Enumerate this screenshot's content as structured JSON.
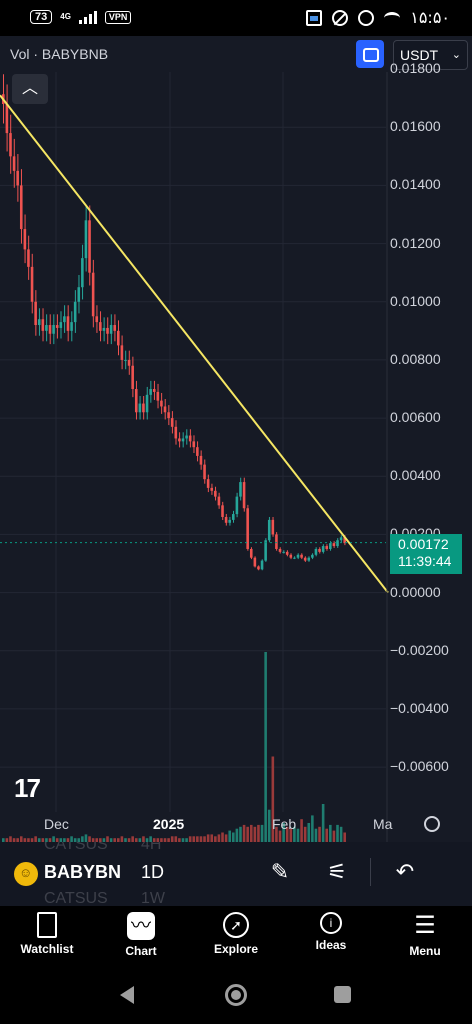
{
  "status_bar": {
    "battery": "73",
    "network": "4G",
    "vpn": "VPN",
    "time": "۱۵:۵۰"
  },
  "header": {
    "volume_label": "Vol · BABYBNB",
    "currency": "USDT",
    "sync_icon": "sync-icon",
    "collapse_icon": "chevron-up-icon"
  },
  "colors": {
    "background": "#161a25",
    "up": "#26a69a",
    "down": "#ef5350",
    "trendline": "#f5e663",
    "accent": "#2962ff",
    "price_tag": "#089981"
  },
  "chart_data": {
    "type": "candlestick",
    "title": "",
    "y_ticks": [
      "0.01600",
      "0.01400",
      "0.01200",
      "0.01000",
      "0.00800",
      "0.00600",
      "0.00400",
      "0.00200",
      "0.00000",
      "−0.00200",
      "−0.00400",
      "−0.00600"
    ],
    "y_top_partial": "0.01800",
    "x_ticks": [
      "Dec",
      "2025",
      "Feb",
      "Ma"
    ],
    "ylim": [
      -0.0072,
      0.0179
    ],
    "last_price": "0.00172",
    "countdown": "11:39:44",
    "dates_start": "2024-11-08",
    "close_values": [
      0.0168,
      0.0158,
      0.015,
      0.0145,
      0.014,
      0.0125,
      0.0118,
      0.0112,
      0.01,
      0.0092,
      0.0094,
      0.009,
      0.0092,
      0.0089,
      0.0092,
      0.0091,
      0.0093,
      0.0095,
      0.009,
      0.0093,
      0.01,
      0.0105,
      0.0115,
      0.0128,
      0.011,
      0.0095,
      0.0093,
      0.009,
      0.0091,
      0.0089,
      0.0092,
      0.009,
      0.0085,
      0.008,
      0.008,
      0.0078,
      0.007,
      0.0062,
      0.0065,
      0.0062,
      0.0068,
      0.007,
      0.0069,
      0.0066,
      0.0064,
      0.0062,
      0.006,
      0.0057,
      0.0053,
      0.0052,
      0.0053,
      0.0054,
      0.0052,
      0.005,
      0.0047,
      0.0044,
      0.0039,
      0.0036,
      0.0035,
      0.0033,
      0.003,
      0.0026,
      0.0024,
      0.0025,
      0.0027,
      0.0033,
      0.0038,
      0.0029,
      0.0015,
      0.0012,
      0.0009,
      0.0008,
      0.0011,
      0.0018,
      0.0025,
      0.002,
      0.0015,
      0.0014,
      0.0014,
      0.0013,
      0.0012,
      0.0012,
      0.0013,
      0.0012,
      0.0011,
      0.0012,
      0.0013,
      0.0015,
      0.0014,
      0.0016,
      0.0015,
      0.0017,
      0.0016,
      0.0018,
      0.0019,
      0.0017
    ],
    "volume_values": [
      2,
      2,
      3,
      2,
      2,
      3,
      2,
      2,
      2,
      3,
      2,
      2,
      2,
      2,
      3,
      2,
      2,
      2,
      2,
      3,
      2,
      2,
      3,
      4,
      3,
      2,
      2,
      2,
      2,
      3,
      2,
      2,
      2,
      3,
      2,
      2,
      3,
      2,
      2,
      3,
      2,
      3,
      2,
      2,
      2,
      2,
      2,
      3,
      3,
      2,
      2,
      2,
      3,
      3,
      3,
      3,
      3,
      4,
      4,
      3,
      4,
      5,
      4,
      6,
      5,
      7,
      8,
      9,
      8,
      9,
      8,
      9,
      9,
      100,
      17,
      45,
      8,
      6,
      10,
      8,
      7,
      8,
      7,
      12,
      8,
      10,
      14,
      7,
      8,
      20,
      7,
      9,
      6,
      9,
      8,
      5
    ],
    "trendline": {
      "x0": "2024-11-08",
      "y0": 0.0171,
      "x1": "2025-02-27",
      "y1": 0.0
    }
  },
  "symbol_bar": {
    "symbol": "BABYBN",
    "interval": "1D",
    "ghost_above_symbol": "CATSUS",
    "ghost_above_interval": "4H",
    "ghost_below_symbol": "CATSUS",
    "ghost_below_interval": "1W"
  },
  "bottom_nav": [
    {
      "label": "Watchlist",
      "icon": "watchlist-icon"
    },
    {
      "label": "Chart",
      "icon": "chart-icon"
    },
    {
      "label": "Explore",
      "icon": "compass-icon"
    },
    {
      "label": "Ideas",
      "icon": "lightbulb-icon"
    },
    {
      "label": "Menu",
      "icon": "menu-icon"
    }
  ]
}
